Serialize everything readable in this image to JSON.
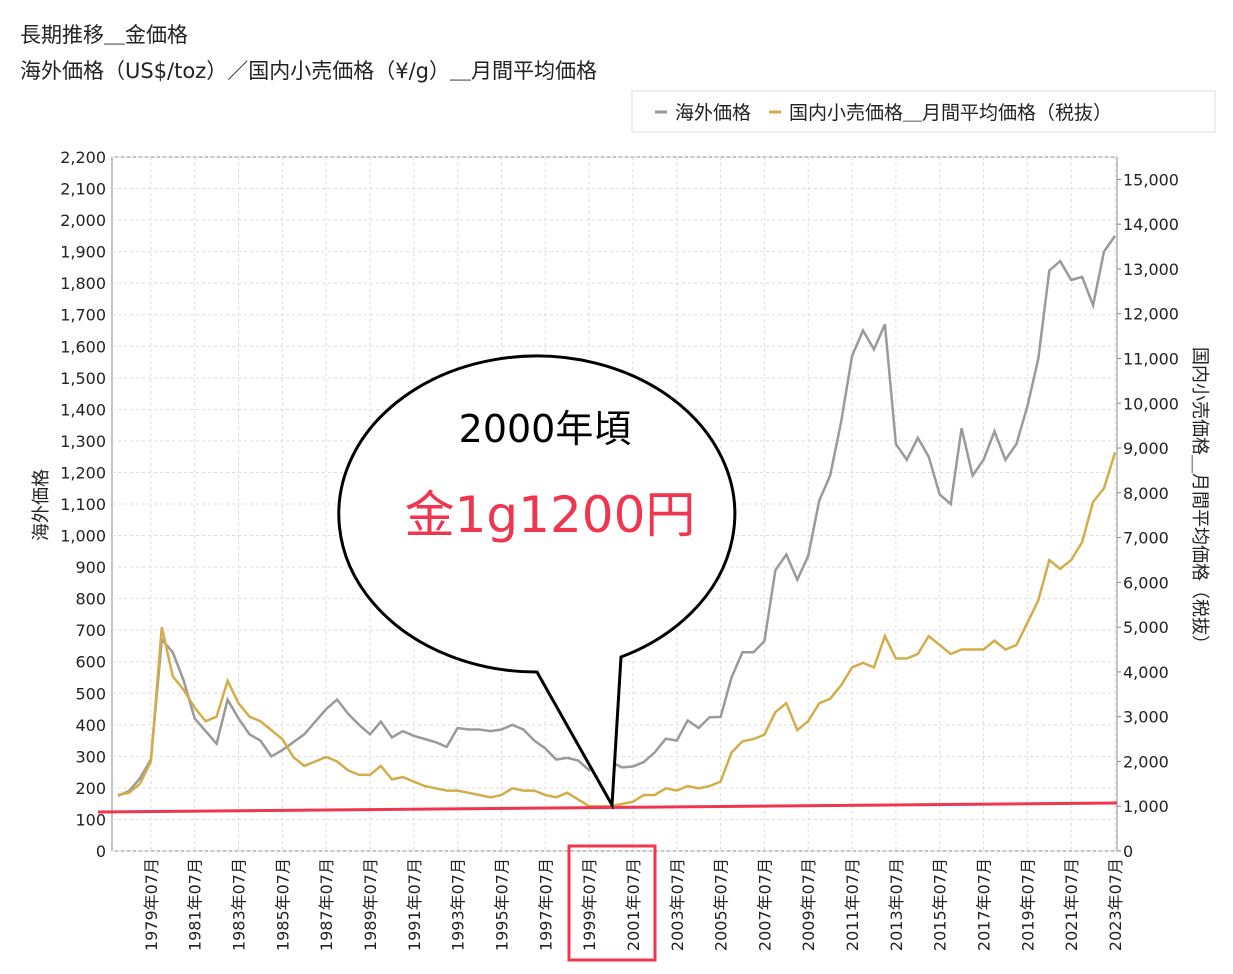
{
  "chart_data": {
    "type": "line",
    "title": "長期推移＿金価格",
    "subtitle": "海外価格（US$/toz）／国内小売価格（¥/g）＿月間平均価格",
    "y_label": "海外価格",
    "y2_label": "国内小売価格＿月間平均価格（税抜）",
    "annotations": [
      "2000年頃",
      "金1g1200円"
    ],
    "legend": "top-right",
    "grid": true,
    "categories": [
      null,
      null,
      null,
      "1979年07月",
      null,
      null,
      null,
      "1981年07月",
      null,
      null,
      null,
      "1983年07月",
      null,
      null,
      null,
      "1985年07月",
      null,
      null,
      null,
      "1987年07月",
      null,
      null,
      null,
      "1989年07月",
      null,
      null,
      null,
      "1991年07月",
      null,
      null,
      null,
      "1993年07月",
      null,
      null,
      null,
      "1995年07月",
      null,
      null,
      null,
      "1997年07月",
      null,
      null,
      null,
      "1999年07月",
      null,
      null,
      null,
      "2001年07月",
      null,
      null,
      null,
      "2003年07月",
      null,
      null,
      null,
      "2005年07月",
      null,
      null,
      null,
      "2007年07月",
      null,
      null,
      null,
      "2009年07月",
      null,
      null,
      null,
      "2011年07月",
      null,
      null,
      null,
      "2013年07月",
      null,
      null,
      null,
      "2015年07月",
      null,
      null,
      null,
      "2017年07月",
      null,
      null,
      null,
      "2019年07月",
      null,
      null,
      null,
      "2021年07月",
      null,
      null,
      null,
      "2023年07月"
    ],
    "series": [
      {
        "name": "海外価格",
        "color": "#9a9a9a",
        "axis": "y",
        "values": [
          175,
          190,
          230,
          290,
          670,
          630,
          540,
          420,
          380,
          340,
          480,
          420,
          370,
          350,
          300,
          320,
          345,
          370,
          410,
          450,
          480,
          435,
          400,
          370,
          410,
          360,
          380,
          365,
          355,
          345,
          330,
          390,
          385,
          385,
          380,
          385,
          400,
          385,
          350,
          325,
          290,
          295,
          287,
          256,
          285,
          282,
          265,
          268,
          282,
          313,
          356,
          350,
          414,
          390,
          424,
          425,
          550,
          630,
          630,
          665,
          890,
          940,
          860,
          935,
          1110,
          1190,
          1360,
          1570,
          1650,
          1590,
          1670,
          1290,
          1240,
          1310,
          1250,
          1130,
          1100,
          1340,
          1190,
          1240,
          1330,
          1240,
          1290,
          1410,
          1560,
          1840,
          1870,
          1810,
          1820,
          1730,
          1900,
          1950
        ]
      },
      {
        "name": "国内小売価格＿月間平均価格（税抜）",
        "color": "#d4ad4a",
        "axis": "y2",
        "values": [
          1250,
          1300,
          1500,
          2000,
          5000,
          3900,
          3600,
          3200,
          2900,
          3000,
          3800,
          3300,
          3000,
          2900,
          2700,
          2500,
          2100,
          1900,
          2000,
          2100,
          2000,
          1800,
          1700,
          1700,
          1900,
          1600,
          1650,
          1550,
          1450,
          1400,
          1350,
          1350,
          1300,
          1250,
          1200,
          1250,
          1400,
          1350,
          1350,
          1250,
          1200,
          1300,
          1150,
          1000,
          1000,
          1000,
          1050,
          1100,
          1250,
          1250,
          1400,
          1350,
          1450,
          1400,
          1450,
          1550,
          2200,
          2450,
          2500,
          2600,
          3100,
          3300,
          2700,
          2900,
          3300,
          3400,
          3700,
          4100,
          4200,
          4100,
          4800,
          4300,
          4300,
          4400,
          4800,
          4600,
          4400,
          4500,
          4500,
          4500,
          4700,
          4500,
          4600,
          5100,
          5600,
          6500,
          6300,
          6500,
          6900,
          7800,
          8100,
          8900
        ]
      }
    ],
    "ylim": [
      0,
      2200
    ],
    "yticks": [
      0,
      100,
      200,
      300,
      400,
      500,
      600,
      700,
      800,
      900,
      {
        "value": 1000,
        "label": "1,000"
      },
      {
        "value": 1100,
        "label": "1,100"
      },
      {
        "value": 1200,
        "label": "1,200"
      },
      {
        "value": 1300,
        "label": "1,300"
      },
      {
        "value": 1400,
        "label": "1,400"
      },
      {
        "value": 1500,
        "label": "1,500"
      },
      {
        "value": 1600,
        "label": "1,600"
      },
      {
        "value": 1700,
        "label": "1,700"
      },
      {
        "value": 1800,
        "label": "1,800"
      },
      {
        "value": 1900,
        "label": "1,900"
      },
      {
        "value": 2000,
        "label": "2,000"
      },
      {
        "value": 2100,
        "label": "2,100"
      },
      {
        "value": 2200,
        "label": "2,200"
      }
    ],
    "y2lim": [
      0,
      15500
    ],
    "y2ticks": [
      0,
      {
        "value": 1000,
        "label": "1,000"
      },
      {
        "value": 2000,
        "label": "2,000"
      },
      {
        "value": 3000,
        "label": "3,000"
      },
      {
        "value": 4000,
        "label": "4,000"
      },
      {
        "value": 5000,
        "label": "5,000"
      },
      {
        "value": 6000,
        "label": "6,000"
      },
      {
        "value": 7000,
        "label": "7,000"
      },
      {
        "value": 8000,
        "label": "8,000"
      },
      {
        "value": 9000,
        "label": "9,000"
      },
      {
        "value": 10000,
        "label": "10,000"
      },
      {
        "value": 11000,
        "label": "11,000"
      },
      {
        "value": 12000,
        "label": "12,000"
      },
      {
        "value": 13000,
        "label": "13,000"
      },
      {
        "value": 14000,
        "label": "14,000"
      },
      {
        "value": 15000,
        "label": "15,000"
      }
    ]
  }
}
